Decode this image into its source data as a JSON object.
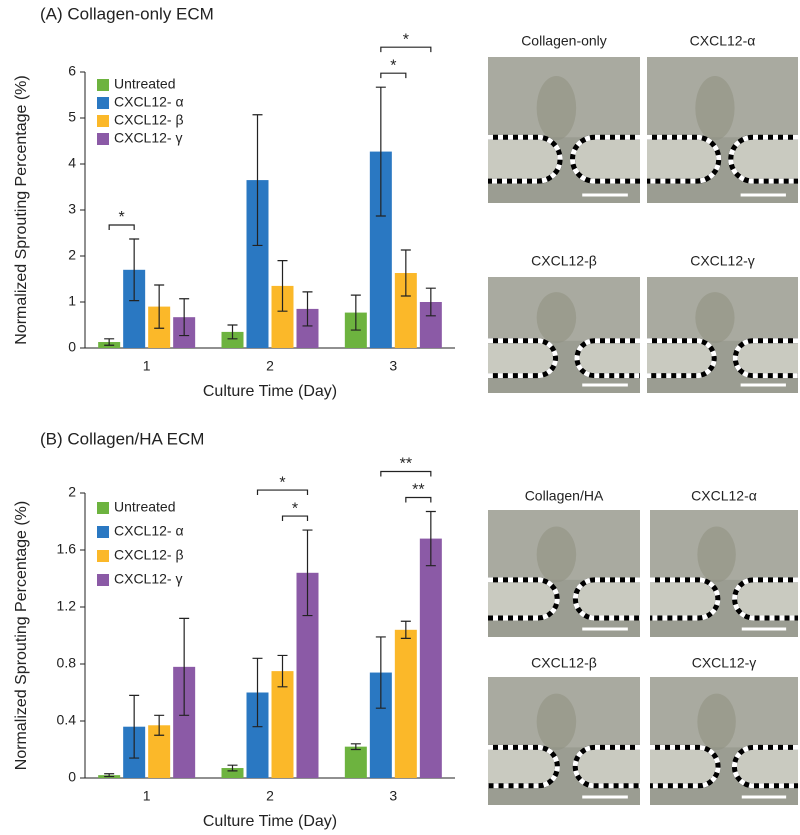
{
  "chart_data": [
    {
      "type": "bar",
      "title": "(A) Collagen-only ECM",
      "y_label": "Normalized Sprouting Percentage (%)",
      "x_label": "Culture Time (Day)",
      "categories": [
        "1",
        "2",
        "3"
      ],
      "series": [
        {
          "name": "Untreated",
          "color": "#6db33f",
          "values": [
            0.13,
            0.35,
            0.77
          ],
          "errors": [
            0.07,
            0.15,
            0.38
          ]
        },
        {
          "name": "CXCL12- α",
          "color": "#2a78c2",
          "values": [
            1.7,
            3.65,
            4.27
          ],
          "errors": [
            0.67,
            1.42,
            1.4
          ]
        },
        {
          "name": "CXCL12- β",
          "color": "#fbb829",
          "values": [
            0.9,
            1.35,
            1.63
          ],
          "errors": [
            0.47,
            0.55,
            0.5
          ]
        },
        {
          "name": "CXCL12- γ",
          "color": "#8b5aa6",
          "values": [
            0.67,
            0.85,
            1.0
          ],
          "errors": [
            0.4,
            0.37,
            0.3
          ]
        }
      ],
      "ylim": [
        0,
        6
      ],
      "yticks": [
        0,
        1,
        2,
        3,
        4,
        5,
        6
      ],
      "annotations": [
        {
          "text": "*",
          "category": "1",
          "between": [
            "Untreated",
            "CXCL12- α"
          ]
        },
        {
          "text": "*",
          "category": "3",
          "between": [
            "CXCL12- α",
            "CXCL12- β"
          ]
        },
        {
          "text": "*",
          "category": "3",
          "between": [
            "CXCL12- α",
            "CXCL12- γ"
          ]
        }
      ],
      "images": [
        "Collagen-only",
        "CXCL12-α",
        "CXCL12-β",
        "CXCL12-γ"
      ]
    },
    {
      "type": "bar",
      "title": "(B) Collagen/HA ECM",
      "y_label": "Normalized Sprouting Percentage (%)",
      "x_label": "Culture Time (Day)",
      "categories": [
        "1",
        "2",
        "3"
      ],
      "series": [
        {
          "name": "Untreated",
          "color": "#6db33f",
          "values": [
            0.02,
            0.07,
            0.22
          ],
          "errors": [
            0.01,
            0.02,
            0.02
          ]
        },
        {
          "name": "CXCL12- α",
          "color": "#2a78c2",
          "values": [
            0.36,
            0.6,
            0.74
          ],
          "errors": [
            0.22,
            0.24,
            0.25
          ]
        },
        {
          "name": "CXCL12- β",
          "color": "#fbb829",
          "values": [
            0.37,
            0.75,
            1.04
          ],
          "errors": [
            0.07,
            0.11,
            0.06
          ]
        },
        {
          "name": "CXCL12- γ",
          "color": "#8b5aa6",
          "values": [
            0.78,
            1.44,
            1.68
          ],
          "errors": [
            0.34,
            0.3,
            0.19
          ]
        }
      ],
      "ylim": [
        0,
        2
      ],
      "yticks": [
        0,
        0.4,
        0.8,
        1.2,
        1.6,
        2
      ],
      "annotations": [
        {
          "text": "*",
          "category": "2",
          "between": [
            "CXCL12- β",
            "CXCL12- γ"
          ]
        },
        {
          "text": "*",
          "category": "2",
          "between": [
            "CXCL12- α",
            "CXCL12- γ"
          ]
        },
        {
          "text": "**",
          "category": "3",
          "between": [
            "CXCL12- β",
            "CXCL12- γ"
          ]
        },
        {
          "text": "**",
          "category": "3",
          "between": [
            "CXCL12- α",
            "CXCL12- γ"
          ]
        }
      ],
      "images": [
        "Collagen/HA",
        "CXCL12-α",
        "CXCL12-β",
        "CXCL12-γ"
      ]
    }
  ]
}
